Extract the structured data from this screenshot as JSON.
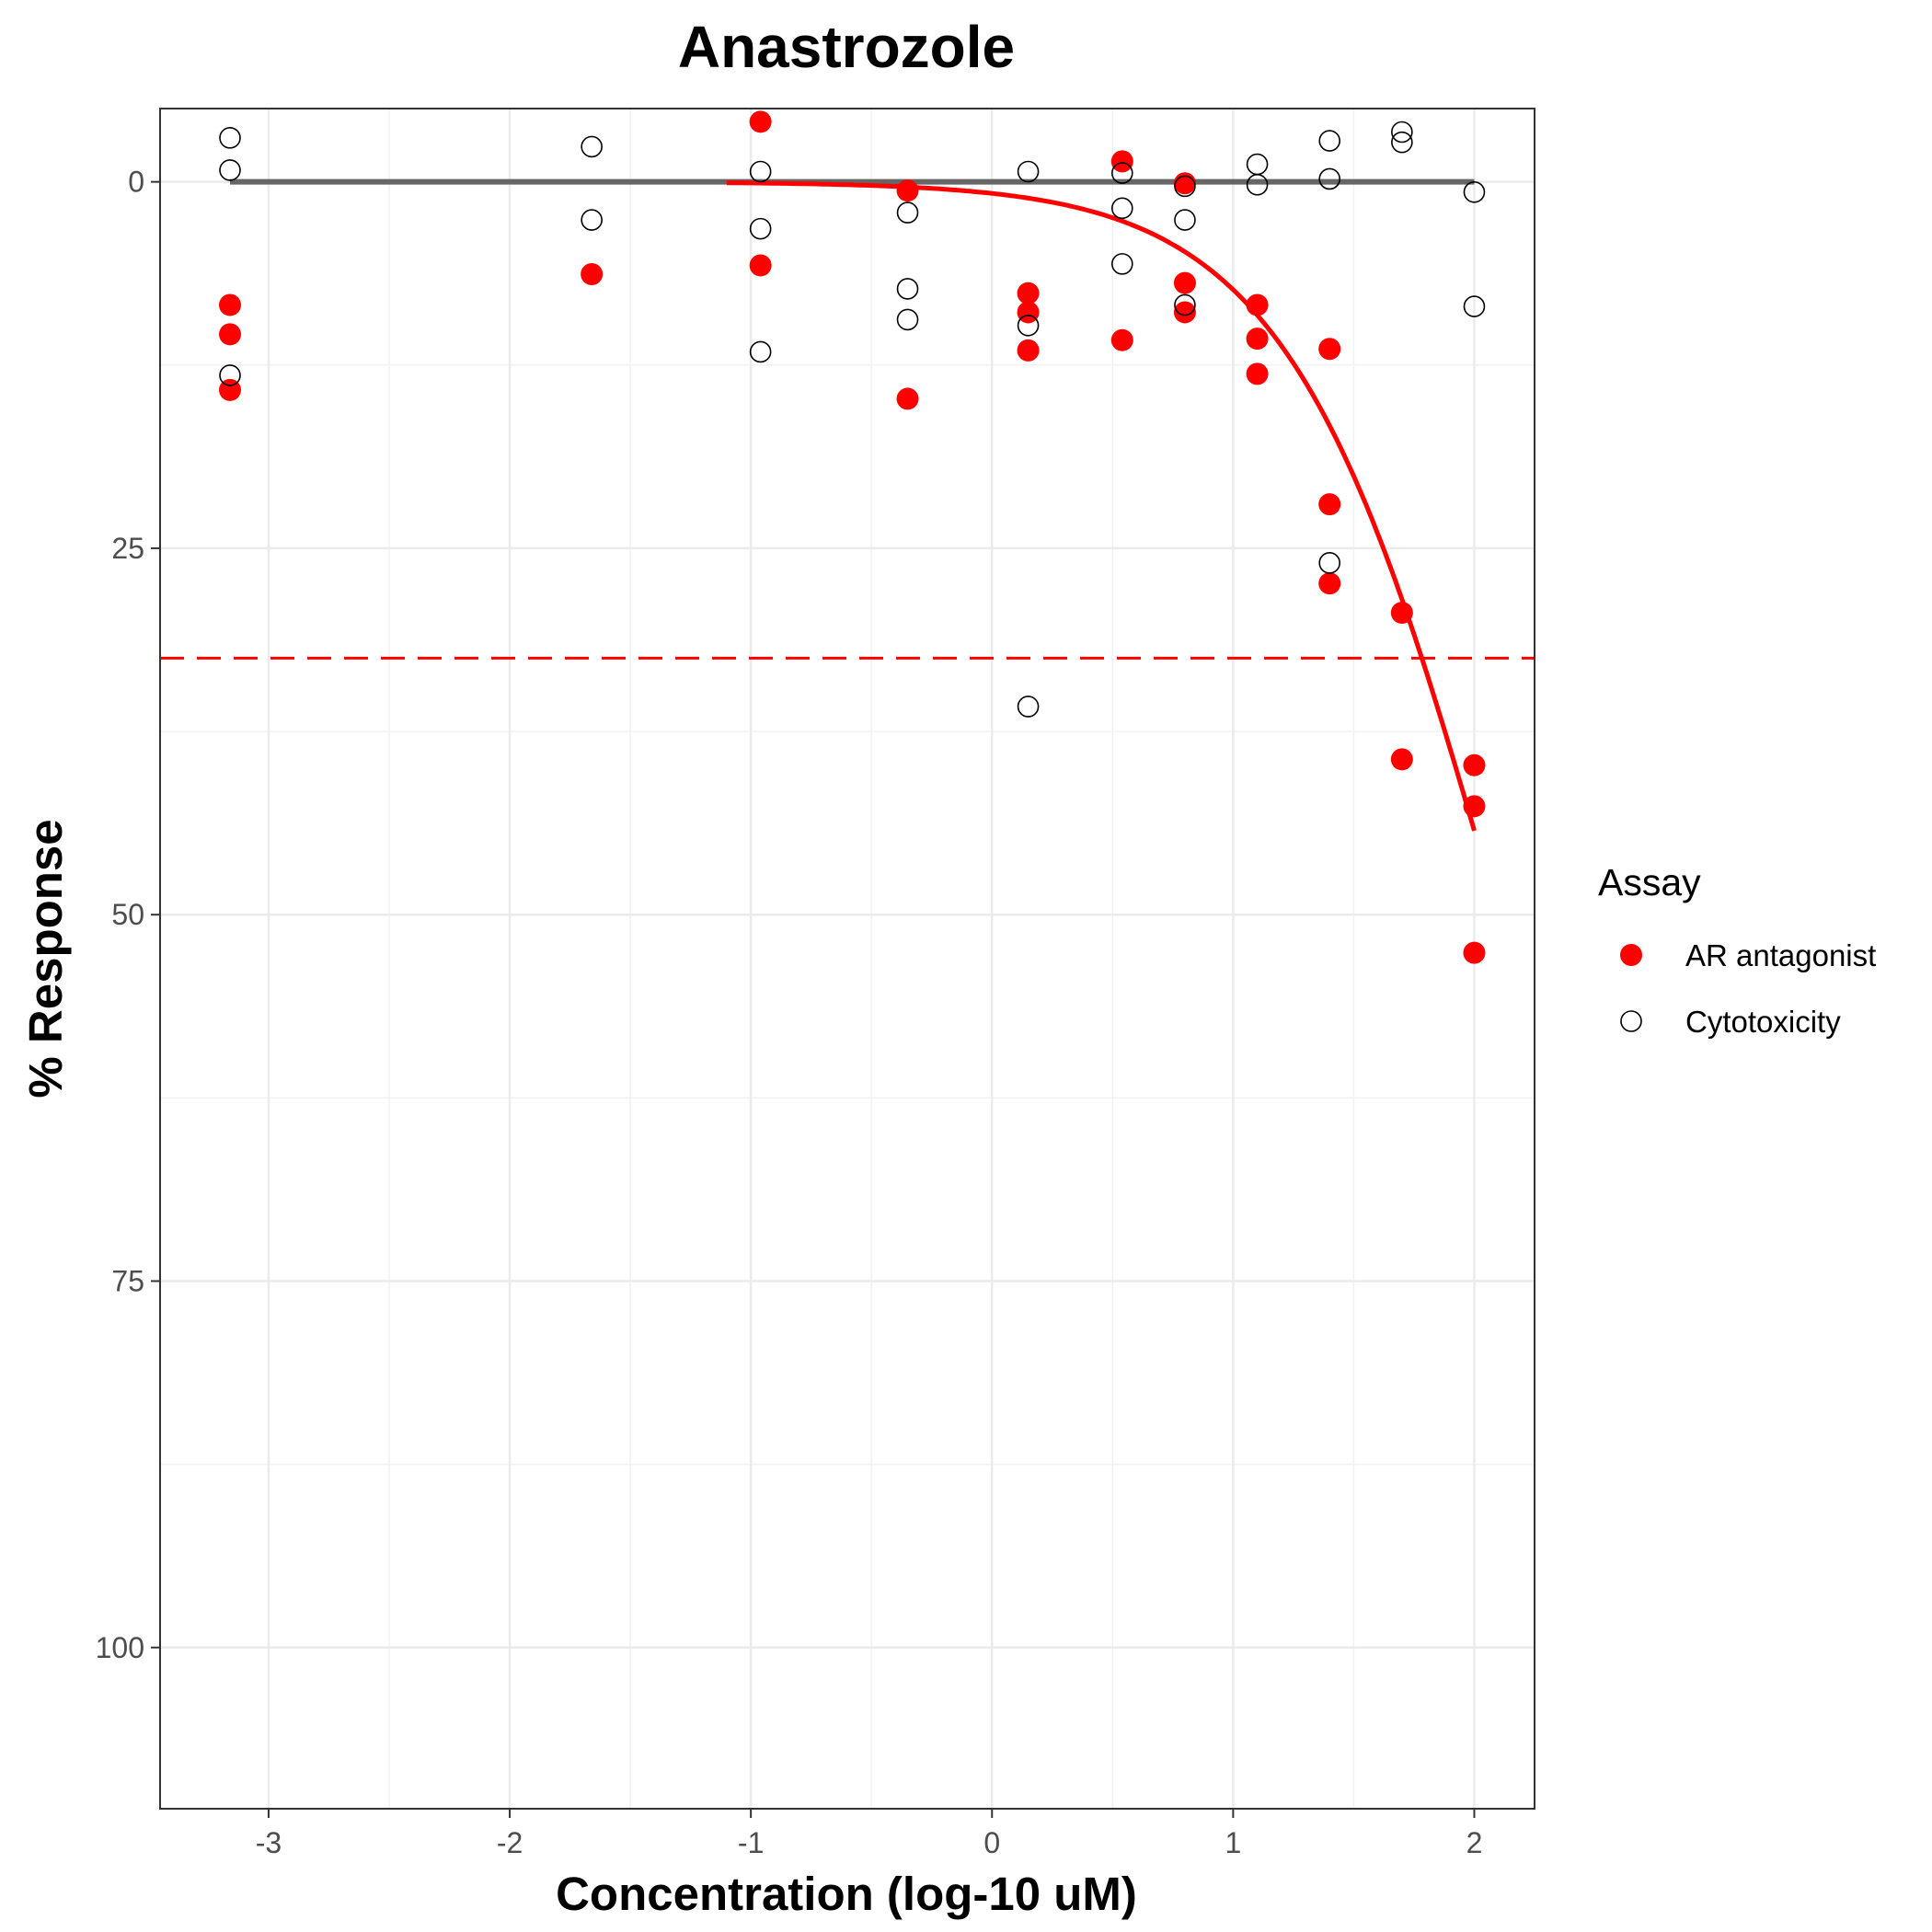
{
  "chart_data": {
    "type": "scatter",
    "title": "Anastrozole",
    "xlabel": "Concentration (log-10 uM)",
    "ylabel": "% Response",
    "xlim": [
      -3.45,
      2.25
    ],
    "ylim": [
      111,
      -5
    ],
    "y_reversed": true,
    "x_ticks": [
      -3,
      -2,
      -1,
      0,
      1,
      2
    ],
    "x_tick_labels": [
      "-3",
      "-2",
      "-1",
      "0",
      "1",
      "2"
    ],
    "y_ticks": [
      0,
      25,
      50,
      75,
      100
    ],
    "y_tick_labels": [
      "0",
      "25",
      "50",
      "75",
      "100"
    ],
    "grid": true,
    "legend": {
      "title": "Assay",
      "position": "right",
      "entries": [
        "AR antagonist",
        "Cytotoxicity"
      ]
    },
    "series": [
      {
        "name": "AR antagonist",
        "marker": "filled-circle",
        "color": "#ff0000",
        "points": [
          [
            -3.16,
            8.4
          ],
          [
            -3.16,
            10.4
          ],
          [
            -3.16,
            14.2
          ],
          [
            -1.66,
            6.3
          ],
          [
            -0.96,
            -4.1
          ],
          [
            -0.96,
            5.7
          ],
          [
            -0.35,
            0.6
          ],
          [
            -0.35,
            14.8
          ],
          [
            0.15,
            7.6
          ],
          [
            0.15,
            8.9
          ],
          [
            0.15,
            11.5
          ],
          [
            0.54,
            -1.4
          ],
          [
            0.54,
            10.8
          ],
          [
            0.8,
            0.1
          ],
          [
            0.8,
            6.9
          ],
          [
            0.8,
            8.9
          ],
          [
            1.1,
            8.4
          ],
          [
            1.1,
            10.7
          ],
          [
            1.1,
            13.1
          ],
          [
            1.4,
            11.4
          ],
          [
            1.4,
            22.0
          ],
          [
            1.4,
            27.4
          ],
          [
            1.7,
            29.4
          ],
          [
            1.7,
            39.4
          ],
          [
            2.0,
            39.8
          ],
          [
            2.0,
            42.6
          ],
          [
            2.0,
            52.6
          ]
        ]
      },
      {
        "name": "Cytotoxicity",
        "marker": "open-circle",
        "color": "#000000",
        "points": [
          [
            -3.16,
            -3.0
          ],
          [
            -3.16,
            -0.8
          ],
          [
            -3.16,
            13.2
          ],
          [
            -1.66,
            -2.4
          ],
          [
            -1.66,
            2.6
          ],
          [
            -0.96,
            -0.7
          ],
          [
            -0.96,
            3.2
          ],
          [
            -0.96,
            11.6
          ],
          [
            -0.35,
            2.1
          ],
          [
            -0.35,
            7.3
          ],
          [
            -0.35,
            9.4
          ],
          [
            0.15,
            -0.7
          ],
          [
            0.15,
            9.8
          ],
          [
            0.15,
            35.8
          ],
          [
            0.54,
            -0.6
          ],
          [
            0.54,
            1.8
          ],
          [
            0.54,
            5.6
          ],
          [
            0.8,
            0.3
          ],
          [
            0.8,
            2.6
          ],
          [
            0.8,
            8.4
          ],
          [
            1.1,
            -1.2
          ],
          [
            1.1,
            0.2
          ],
          [
            1.4,
            -2.8
          ],
          [
            1.4,
            -0.2
          ],
          [
            1.4,
            26.0
          ],
          [
            1.7,
            -3.4
          ],
          [
            1.7,
            -2.7
          ],
          [
            2.0,
            0.7
          ],
          [
            2.0,
            8.5
          ]
        ]
      }
    ],
    "fit_lines": [
      {
        "series": "Cytotoxicity",
        "color": "#666666",
        "model": "constant",
        "x_range": [
          -3.16,
          2.0
        ],
        "value": 0
      },
      {
        "series": "AR antagonist",
        "color": "#ff0000",
        "model": "hill",
        "x_range": [
          -1.1,
          2.0
        ],
        "top": 100,
        "ac50_log": 2.1,
        "hill_slope": 1.0
      }
    ],
    "reference_lines": [
      {
        "orientation": "horizontal",
        "value": 32.5,
        "color": "#ff0000",
        "style": "dashed"
      }
    ]
  }
}
